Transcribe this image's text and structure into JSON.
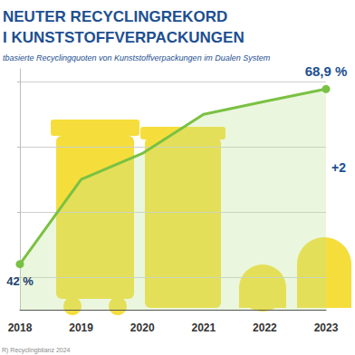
{
  "chart_data": {
    "type": "line",
    "title": "NEUTER RECYCLINGREKORD\nI KUNSTSTOFFVERPACKUNGEN",
    "subtitle": "tbasierte Recyclingquoten von Kunststoffverpackungen im Dualen System",
    "annotations": [
      "+2"
    ],
    "source": "R) Recyclingbilanz 2024",
    "categories": [
      "2018",
      "2019",
      "2020",
      "2021",
      "2022",
      "2023"
    ],
    "values": [
      42,
      55,
      59,
      65,
      67,
      68.9
    ],
    "value_labels": [
      "42 %",
      null,
      null,
      null,
      null,
      "68,9 %"
    ],
    "data_labels": true,
    "color": "#7ac143",
    "ylim": [
      35,
      72
    ],
    "yticks": [
      40,
      50,
      60,
      70
    ],
    "grid": true,
    "tick_labels": "x"
  }
}
